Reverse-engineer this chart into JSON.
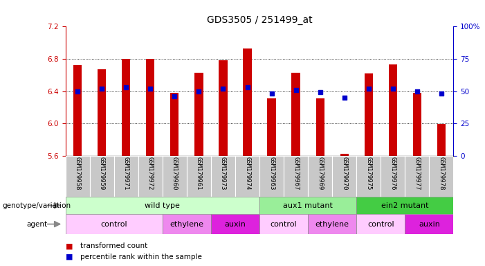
{
  "title": "GDS3505 / 251499_at",
  "samples": [
    "GSM179958",
    "GSM179959",
    "GSM179971",
    "GSM179972",
    "GSM179960",
    "GSM179961",
    "GSM179973",
    "GSM179974",
    "GSM179963",
    "GSM179967",
    "GSM179969",
    "GSM179970",
    "GSM179975",
    "GSM179976",
    "GSM179977",
    "GSM179978"
  ],
  "bar_values": [
    6.72,
    6.67,
    6.8,
    6.8,
    6.38,
    6.63,
    6.78,
    6.93,
    6.31,
    6.63,
    6.31,
    5.62,
    6.62,
    6.73,
    6.38,
    5.99
  ],
  "dot_values": [
    50,
    52,
    53,
    52,
    46,
    50,
    52,
    53,
    48,
    51,
    49,
    45,
    52,
    52,
    50,
    48
  ],
  "bar_bottom": 5.6,
  "ylim_left": [
    5.6,
    7.2
  ],
  "ylim_right": [
    0,
    100
  ],
  "yticks_left": [
    5.6,
    6.0,
    6.4,
    6.8,
    7.2
  ],
  "yticks_right": [
    0,
    25,
    50,
    75,
    100
  ],
  "grid_values": [
    6.0,
    6.4,
    6.8
  ],
  "bar_color": "#cc0000",
  "dot_color": "#0000cc",
  "background_color": "#ffffff",
  "left_label_color": "#cc0000",
  "right_label_color": "#0000cc",
  "genotype_groups": [
    {
      "label": "wild type",
      "start": 0,
      "end": 8,
      "color": "#ccffcc"
    },
    {
      "label": "aux1 mutant",
      "start": 8,
      "end": 12,
      "color": "#99ee99"
    },
    {
      "label": "ein2 mutant",
      "start": 12,
      "end": 16,
      "color": "#44cc44"
    }
  ],
  "agent_groups": [
    {
      "label": "control",
      "start": 0,
      "end": 4,
      "color": "#ffccff"
    },
    {
      "label": "ethylene",
      "start": 4,
      "end": 6,
      "color": "#ee88ee"
    },
    {
      "label": "auxin",
      "start": 6,
      "end": 8,
      "color": "#dd22dd"
    },
    {
      "label": "control",
      "start": 8,
      "end": 10,
      "color": "#ffccff"
    },
    {
      "label": "ethylene",
      "start": 10,
      "end": 12,
      "color": "#ee88ee"
    },
    {
      "label": "control",
      "start": 12,
      "end": 14,
      "color": "#ffccff"
    },
    {
      "label": "auxin",
      "start": 14,
      "end": 16,
      "color": "#dd22dd"
    }
  ],
  "tick_fontsize": 7.5,
  "bar_width": 0.35,
  "label_gray": "#cccccc",
  "sample_bg": "#c8c8c8"
}
